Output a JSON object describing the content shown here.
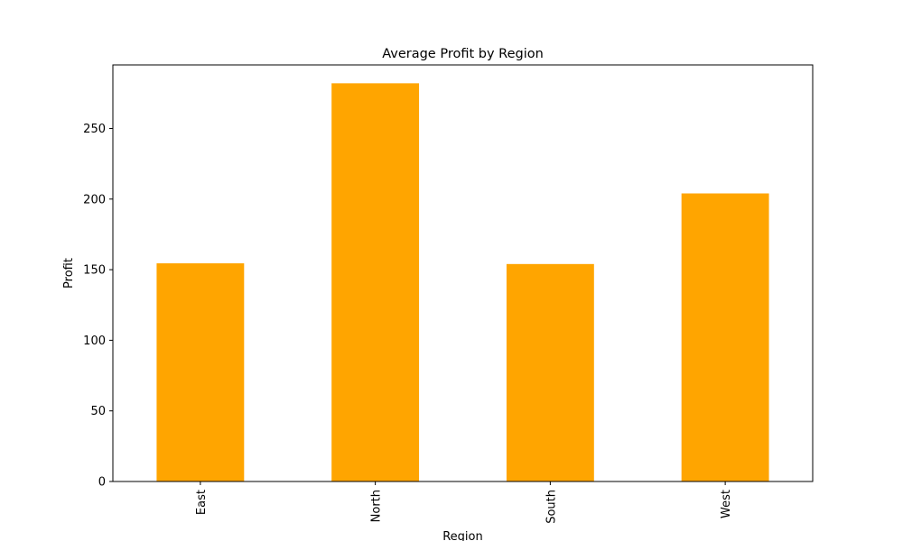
{
  "chart_data": {
    "type": "bar",
    "title": "Average Profit by Region",
    "xlabel": "Region",
    "ylabel": "Profit",
    "categories": [
      "East",
      "North",
      "South",
      "West"
    ],
    "values": [
      154.5,
      282.0,
      154.0,
      204.0
    ],
    "ylim": [
      0,
      295
    ],
    "yticks": [
      0,
      50,
      100,
      150,
      200,
      250
    ],
    "bar_color": "#FFA500",
    "grid": false,
    "legend": false
  }
}
